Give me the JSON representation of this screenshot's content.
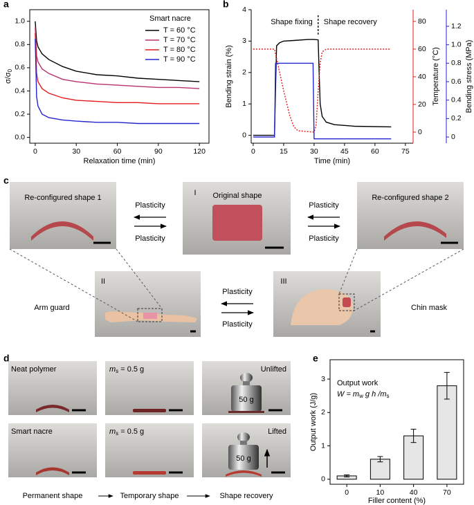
{
  "chart_data": [
    {
      "type": "line",
      "panel_label": "a",
      "xlabel": "Relaxation time (min)",
      "ylabel": [
        "σ/σ",
        "0"
      ],
      "legend_title": "Smart nacre",
      "legend": "upper right",
      "x": [
        0,
        1,
        2,
        5,
        10,
        20,
        30,
        45,
        60,
        75,
        90,
        105,
        120
      ],
      "series": [
        {
          "name": "T = 60 °C",
          "color": "#000000",
          "values": [
            1.0,
            0.83,
            0.78,
            0.72,
            0.67,
            0.61,
            0.57,
            0.54,
            0.53,
            0.51,
            0.5,
            0.49,
            0.48
          ]
        },
        {
          "name": "T = 70 °C",
          "color": "#b8306e",
          "values": [
            0.95,
            0.7,
            0.65,
            0.59,
            0.55,
            0.5,
            0.48,
            0.46,
            0.45,
            0.44,
            0.43,
            0.43,
            0.42
          ]
        },
        {
          "name": "T = 80 °C",
          "color": "#e3191c",
          "values": [
            0.9,
            0.55,
            0.48,
            0.42,
            0.38,
            0.34,
            0.32,
            0.31,
            0.3,
            0.3,
            0.29,
            0.29,
            0.29
          ]
        },
        {
          "name": "T = 90 °C",
          "color": "#2323d2",
          "values": [
            0.85,
            0.35,
            0.27,
            0.2,
            0.17,
            0.15,
            0.14,
            0.13,
            0.13,
            0.12,
            0.12,
            0.12,
            0.12
          ]
        }
      ],
      "xlim": [
        -4,
        127
      ],
      "ylim": [
        -0.05,
        1.1
      ],
      "xticks": [
        0,
        30,
        60,
        90,
        120
      ],
      "yticks": [
        {
          "value": 0,
          "label": "0.0"
        },
        0.2,
        0.4,
        0.6,
        0.8,
        {
          "value": 1,
          "label": "1.0"
        }
      ]
    },
    {
      "type": "line",
      "panel_label": "b",
      "xlabel": "Time (min)",
      "ylabel": "Bending strain (%)",
      "y2label": "Temperature (°C)",
      "y3label": "Bending stress (MPa)",
      "annotations": [
        "Shape fixing",
        "Shape recovery"
      ],
      "vline": 32,
      "series": [
        {
          "color": "#000000",
          "axis": "y",
          "linestyle": "solid",
          "x": [
            0,
            10.5,
            11,
            11.5,
            13,
            15,
            20,
            27,
            30,
            32,
            32.5,
            33,
            34,
            36,
            40,
            50,
            68
          ],
          "values": [
            0,
            0,
            1.5,
            2.85,
            2.95,
            3.0,
            3.02,
            3.05,
            3.05,
            3.04,
            2.0,
            1.0,
            0.6,
            0.42,
            0.34,
            0.29,
            0.27
          ]
        },
        {
          "color": "#e3191c",
          "axis": "y2",
          "linestyle": "dotted",
          "x": [
            0,
            10.5,
            12,
            15,
            18,
            20,
            22,
            30,
            31,
            32,
            33,
            34,
            36,
            68
          ],
          "values": [
            60,
            60,
            50,
            30,
            12,
            4,
            1,
            0,
            5,
            30,
            50,
            58,
            60,
            60
          ]
        },
        {
          "color": "#2323d2",
          "axis": "y3",
          "linestyle": "solid",
          "x": [
            0,
            10.5,
            11,
            29.5,
            30,
            68
          ],
          "values": [
            0,
            0,
            0.8,
            0.8,
            -0.02,
            -0.02
          ]
        }
      ],
      "xlim": [
        -1,
        78.8
      ],
      "ylim": [
        -0.25,
        4
      ],
      "y2lim": [
        -8,
        88.5
      ],
      "y3lim": [
        -0.067,
        1.38
      ],
      "xticks": [
        0,
        15,
        30,
        45,
        60,
        75
      ],
      "yticks": [
        0,
        1,
        2,
        3,
        4
      ],
      "y2ticks": [
        0,
        20,
        40,
        60,
        80
      ],
      "y3ticks": [
        0,
        0.2,
        0.4,
        0.6,
        0.8,
        {
          "value": 1,
          "label": "1.0"
        },
        1.2
      ]
    },
    {
      "type": "bar",
      "panel_label": "e",
      "xlabel": "Filler content (%)",
      "ylabel": "Output work (J/g)",
      "annotation": "Output work",
      "formula": [
        "W = m",
        "w",
        " g h /m",
        "s"
      ],
      "categories": [
        "0",
        "10",
        "40",
        "70"
      ],
      "values": [
        0.1,
        0.6,
        1.3,
        2.8
      ],
      "errors": [
        0.03,
        0.08,
        0.2,
        0.4
      ],
      "color": "#e6e6e6",
      "ylim": [
        -0.15,
        3.58
      ],
      "yticks": [
        0,
        1,
        2,
        3
      ]
    }
  ],
  "diagram": {
    "panel_label": "c",
    "photos": [
      {
        "label": "Re-configured shape 1"
      },
      {
        "numeral": "I",
        "label": "Original shape"
      },
      {
        "label": "Re-configured shape 2"
      },
      {
        "numeral": "II"
      },
      {
        "numeral": "III"
      }
    ],
    "arrow_labels": [
      "Plasticity",
      "Plasticity",
      "Plasticity",
      "Plasticity",
      "Plasticity",
      "Plasticity"
    ],
    "side_labels": [
      "Arm guard",
      "Chin mask"
    ]
  },
  "photo_grid": {
    "panel_label": "d",
    "cells": [
      {
        "label": "Neat polymer"
      },
      {
        "label": [
          "m",
          "s",
          " = 0.5 g"
        ]
      },
      {
        "label": "Unlifted",
        "weight": "50 g"
      },
      {
        "label": "Smart nacre"
      },
      {
        "label": [
          "m",
          "s",
          " = 0.5 g"
        ]
      },
      {
        "label": "Lifted",
        "weight": "50 g"
      }
    ],
    "steps": [
      "Permanent shape",
      "Temporary shape",
      "Shape recovery"
    ]
  }
}
